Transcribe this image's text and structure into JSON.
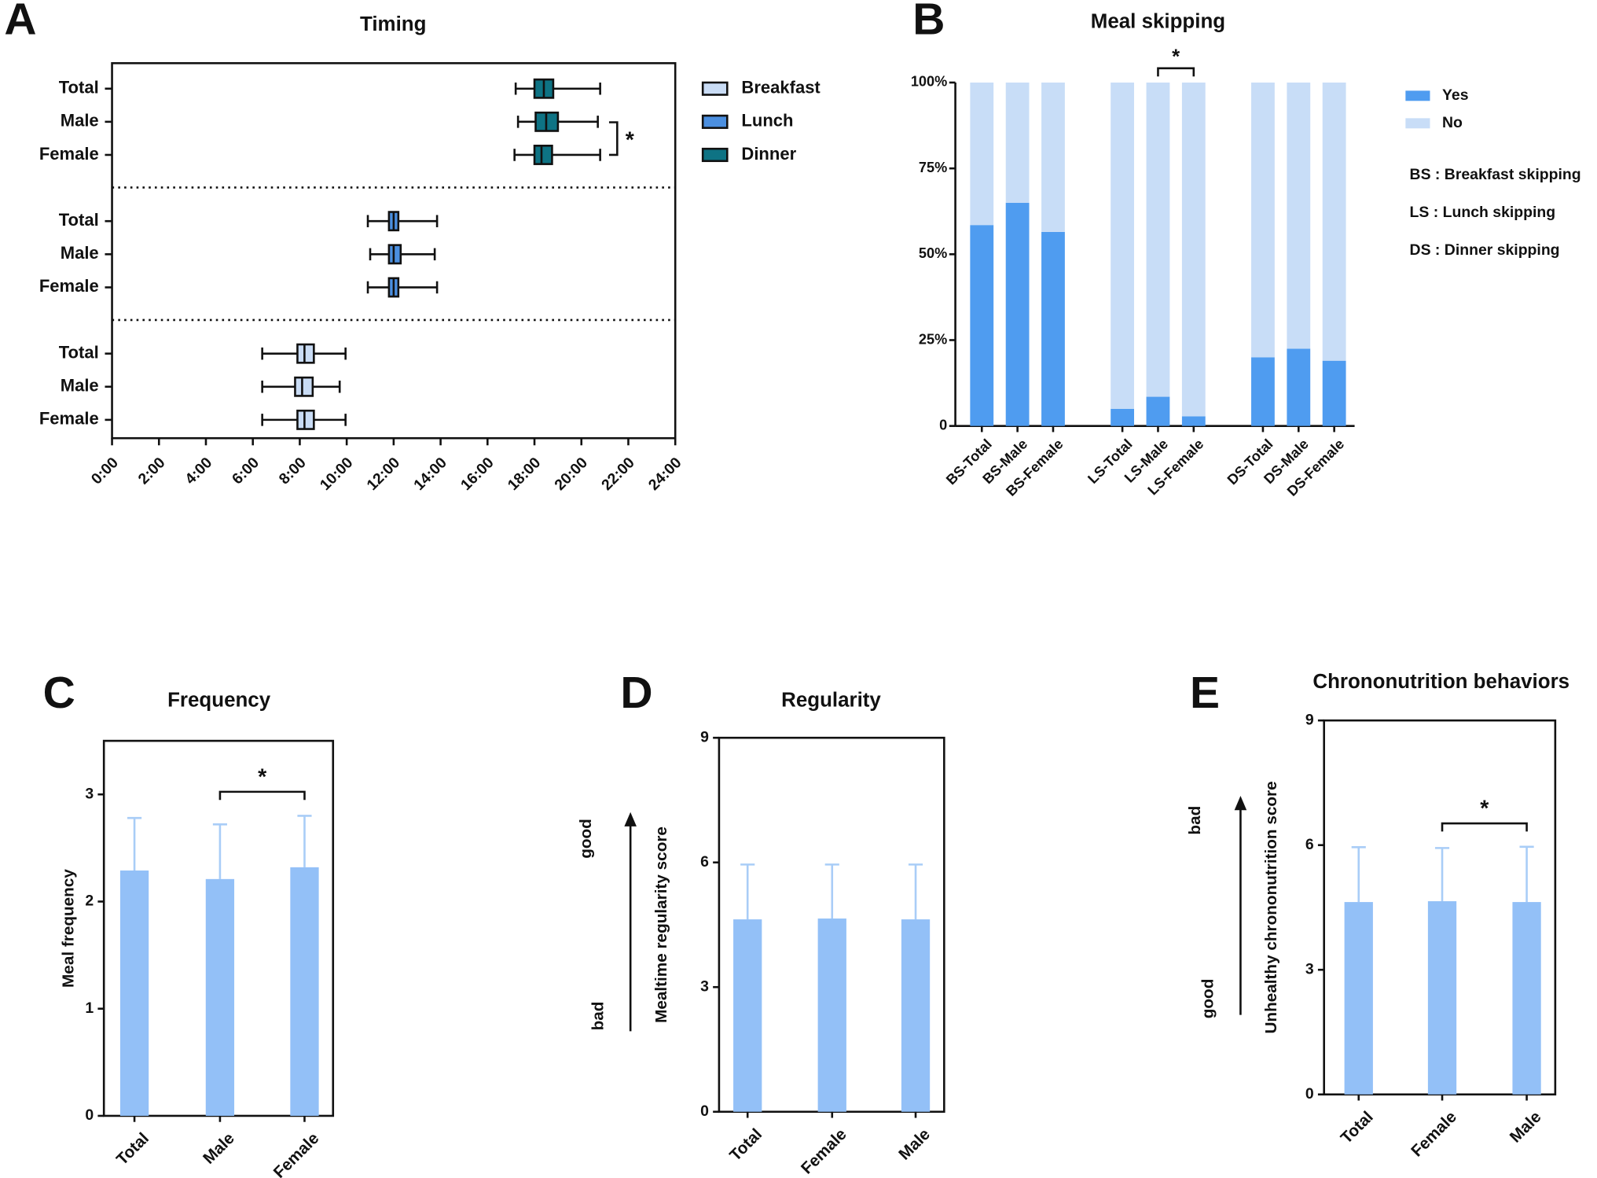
{
  "chart_data": [
    {
      "panel_label": "A",
      "type": "box",
      "title": "Timing",
      "categories": [
        "Total",
        "Male",
        "Female"
      ],
      "series": [
        {
          "name": "Breakfast",
          "color": "#c9dcf5",
          "min": [
            6.4,
            6.4,
            6.4
          ],
          "q1": [
            7.9,
            7.8,
            7.9
          ],
          "median": [
            8.2,
            8.1,
            8.2
          ],
          "q3": [
            8.6,
            8.55,
            8.6
          ],
          "max": [
            9.95,
            9.7,
            9.95
          ]
        },
        {
          "name": "Lunch",
          "color": "#4b8fe0",
          "min": [
            10.9,
            11.0,
            10.9
          ],
          "q1": [
            11.8,
            11.8,
            11.8
          ],
          "median": [
            12.0,
            12.0,
            12.0
          ],
          "q3": [
            12.2,
            12.3,
            12.2
          ],
          "max": [
            13.85,
            13.75,
            13.85
          ]
        },
        {
          "name": "Dinner",
          "color": "#0e7384",
          "min": [
            17.2,
            17.3,
            17.15
          ],
          "q1": [
            18.0,
            18.05,
            18.0
          ],
          "median": [
            18.4,
            18.5,
            18.3
          ],
          "q3": [
            18.8,
            19.0,
            18.75
          ],
          "max": [
            20.8,
            20.7,
            20.8
          ]
        }
      ],
      "xlim": [
        0,
        24
      ],
      "xticks": [
        {
          "value": 0,
          "label": "0:00"
        },
        {
          "value": 2,
          "label": "2:00"
        },
        {
          "value": 4,
          "label": "4:00"
        },
        {
          "value": 6,
          "label": "6:00"
        },
        {
          "value": 8,
          "label": "8:00"
        },
        {
          "value": 10,
          "label": "10:00"
        },
        {
          "value": 12,
          "label": "12:00"
        },
        {
          "value": 14,
          "label": "14:00"
        },
        {
          "value": 16,
          "label": "16:00"
        },
        {
          "value": 18,
          "label": "18:00"
        },
        {
          "value": 20,
          "label": "20:00"
        },
        {
          "value": 22,
          "label": "22:00"
        },
        {
          "value": 24,
          "label": "24:00"
        }
      ],
      "annotations": [
        "*"
      ]
    },
    {
      "panel_label": "B",
      "type": "stacked_bar",
      "title": "Meal skipping",
      "categories": [
        "BS-Total",
        "BS-Male",
        "BS-Female",
        "LS-Total",
        "LS-Male",
        "LS-Female",
        "DS-Total",
        "DS-Male",
        "DS-Female"
      ],
      "series": [
        {
          "name": "Yes",
          "color": "#4f9cf0",
          "values": [
            58.5,
            65,
            56.5,
            5,
            8.5,
            2.8,
            20,
            22.5,
            19
          ]
        },
        {
          "name": "No",
          "color": "#c8ddf7",
          "values": [
            41.5,
            35,
            43.5,
            95,
            91.5,
            97.2,
            80,
            77.5,
            81
          ]
        }
      ],
      "ylim": [
        0,
        100
      ],
      "yticks": [
        0,
        {
          "value": 25,
          "label": "25%"
        },
        {
          "value": 50,
          "label": "50%"
        },
        {
          "value": 75,
          "label": "75%"
        },
        {
          "value": 100,
          "label": "100%"
        }
      ],
      "notes": [
        "BS : Breakfast skipping",
        "LS : Lunch skipping",
        "DS : Dinner skipping"
      ],
      "annotations": [
        "*"
      ]
    },
    {
      "panel_label": "C",
      "type": "bar",
      "title": "Frequency",
      "ylabel": "Meal frequency",
      "categories": [
        "Total",
        "Male",
        "Female"
      ],
      "values": [
        2.29,
        2.21,
        2.32
      ],
      "errors": [
        0.49,
        0.51,
        0.48
      ],
      "color": "#93c0f7",
      "error_color": "#a9cdf7",
      "ylim": [
        0,
        3.5
      ],
      "yticks": [
        0,
        1,
        2,
        3
      ],
      "annotations": [
        "*"
      ]
    },
    {
      "panel_label": "D",
      "type": "bar",
      "title": "Regularity",
      "ylabel": "Mealtime regularity score",
      "categories": [
        "Total",
        "Female",
        "Male"
      ],
      "values": [
        4.63,
        4.65,
        4.63
      ],
      "errors": [
        1.32,
        1.3,
        1.32
      ],
      "color": "#93c0f7",
      "error_color": "#a9cdf7",
      "ylim": [
        0,
        9
      ],
      "yticks": [
        0,
        3,
        6,
        9
      ],
      "arrow_labels": [
        "good",
        "bad"
      ]
    },
    {
      "panel_label": "E",
      "type": "bar",
      "title": "Chrononutrition behaviors",
      "ylabel": "Unhealthy chrononutrition score",
      "categories": [
        "Total",
        "Female",
        "Male"
      ],
      "values": [
        4.63,
        4.65,
        4.63
      ],
      "errors": [
        1.32,
        1.28,
        1.33
      ],
      "color": "#93c0f7",
      "error_color": "#a9cdf7",
      "ylim": [
        0,
        9
      ],
      "yticks": [
        0,
        3,
        6,
        9
      ],
      "arrow_labels": [
        "bad",
        "good"
      ],
      "annotations": [
        "*"
      ]
    }
  ]
}
